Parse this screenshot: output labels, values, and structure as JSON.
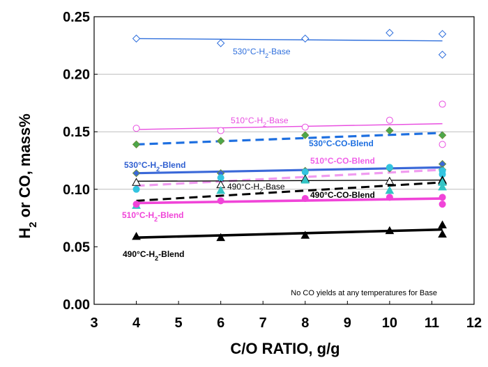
{
  "chart_data": {
    "type": "scatter",
    "xlabel": "C/O RATIO, g/g",
    "ylabel": "H2 or CO, mass%",
    "xlim": [
      3,
      12
    ],
    "ylim": [
      0,
      0.25
    ],
    "xticks": [
      3,
      4,
      5,
      6,
      7,
      8,
      9,
      10,
      11,
      12
    ],
    "yticks": [
      0.0,
      0.05,
      0.1,
      0.15,
      0.2,
      0.25
    ],
    "ytick_labels": [
      "0.00",
      "0.05",
      "0.10",
      "0.15",
      "0.20",
      "0.25"
    ],
    "xtick_labels": [
      "3",
      "4",
      "5",
      "6",
      "7",
      "8",
      "9",
      "10",
      "11",
      "12"
    ],
    "grid_y": [
      0.1,
      0.15,
      0.2
    ],
    "note": "No CO yields at any temperatures for Base",
    "series": [
      {
        "name": "530°C-H2-Base",
        "label_main": "530°C-H",
        "label_sub": "2",
        "label_rest": "-Base",
        "color": "#2f6fdc",
        "marker": "diamond-open",
        "x": [
          4,
          6,
          8,
          10,
          11.25,
          11.25
        ],
        "y": [
          0.231,
          0.227,
          0.231,
          0.236,
          0.235,
          0.217
        ],
        "fit": [
          [
            4,
            0.231
          ],
          [
            11.25,
            0.229
          ]
        ],
        "line_style": "solid",
        "line_width": 1.4
      },
      {
        "name": "510°C-H2-Base",
        "label_main": "510°C-H",
        "label_sub": "2",
        "label_rest": "-Base",
        "color": "#e84de0",
        "marker": "circle-open",
        "x": [
          4,
          6,
          8,
          10,
          11.25,
          11.25
        ],
        "y": [
          0.153,
          0.151,
          0.154,
          0.16,
          0.174,
          0.139
        ],
        "fit": [
          [
            4,
            0.152
          ],
          [
            11.25,
            0.157
          ]
        ],
        "line_style": "solid",
        "line_width": 1.4
      },
      {
        "name": "530°C-CO-Blend",
        "label_main": "530°C-CO-Blend",
        "label_sub": "",
        "label_rest": "",
        "color": "#4ba84b",
        "marker": "diamond-filled",
        "x": [
          4,
          6,
          8,
          10,
          11.25
        ],
        "y": [
          0.139,
          0.142,
          0.147,
          0.151,
          0.147
        ],
        "fit": [
          [
            4,
            0.139
          ],
          [
            11.25,
            0.149
          ]
        ],
        "line_color": "#1e6fe0",
        "line_style": "dashed",
        "line_width": 3.2
      },
      {
        "name": "530°C-H2-Blend",
        "label_main": "530°C-H",
        "label_sub": "2",
        "label_rest": "-Blend",
        "color": "#3a68d8",
        "marker": "diamond-filled",
        "x": [
          4,
          6,
          8,
          10,
          11.25,
          11.25
        ],
        "y": [
          0.114,
          0.114,
          0.116,
          0.118,
          0.122,
          0.117
        ],
        "fit": [
          [
            4,
            0.114
          ],
          [
            11.25,
            0.119
          ]
        ],
        "line_style": "solid",
        "line_width": 3.2
      },
      {
        "name": "510°C-CO-Blend",
        "label_main": "510°C-CO-Blend",
        "label_sub": "",
        "label_rest": "",
        "color": "#33c4e0",
        "marker": "circle-filled",
        "x": [
          4,
          6,
          8,
          10,
          11.25,
          11.25
        ],
        "y": [
          0.1,
          0.11,
          0.115,
          0.119,
          0.116,
          0.113
        ],
        "fit": [
          [
            4,
            0.103
          ],
          [
            11.25,
            0.117
          ]
        ],
        "line_color": "#f09cf0",
        "line_style": "dashed",
        "line_width": 3.2
      },
      {
        "name": "490°C-H2-Base",
        "label_main": "490°C-H",
        "label_sub": "2",
        "label_rest": "-Base",
        "color": "#000000",
        "marker": "triangle-open",
        "x": [
          4,
          6,
          8,
          10,
          11.25,
          11.25
        ],
        "y": [
          0.106,
          0.104,
          0.109,
          0.107,
          0.108,
          0.107
        ],
        "fit": [
          [
            4,
            0.107
          ],
          [
            11.25,
            0.108
          ]
        ],
        "line_style": "solid",
        "line_width": 1.4
      },
      {
        "name": "490°C-CO-Blend",
        "label_main": "490°C-CO-Blend",
        "label_sub": "",
        "label_rest": "",
        "color": "#33c4c4",
        "marker": "triangle-filled",
        "x": [
          4,
          6,
          8,
          10,
          11.25,
          11.25
        ],
        "y": [
          0.086,
          0.099,
          0.108,
          0.099,
          0.102,
          0.106
        ],
        "fit": [
          [
            4,
            0.09
          ],
          [
            11.25,
            0.106
          ]
        ],
        "line_color": "#000000",
        "line_style": "dashed",
        "line_width": 3.0
      },
      {
        "name": "510°C-H2-Blend",
        "label_main": "510°C-H",
        "label_sub": "2",
        "label_rest": "-Blend",
        "color": "#f044d8",
        "marker": "circle-filled",
        "x": [
          4,
          6,
          8,
          10,
          11.25,
          11.25
        ],
        "y": [
          0.087,
          0.09,
          0.092,
          0.093,
          0.093,
          0.087
        ],
        "fit": [
          [
            4,
            0.088
          ],
          [
            11.25,
            0.092
          ]
        ],
        "line_style": "solid",
        "line_width": 3.6
      },
      {
        "name": "490°C-H2-Blend",
        "label_main": "490°C-H",
        "label_sub": "2",
        "label_rest": "-Blend",
        "color": "#000000",
        "marker": "triangle-filled",
        "x": [
          4,
          6,
          8,
          10,
          11.25,
          11.25
        ],
        "y": [
          0.059,
          0.058,
          0.06,
          0.064,
          0.069,
          0.061
        ],
        "fit": [
          [
            4,
            0.058
          ],
          [
            11.25,
            0.065
          ]
        ],
        "line_style": "solid",
        "line_width": 3.6
      }
    ]
  }
}
